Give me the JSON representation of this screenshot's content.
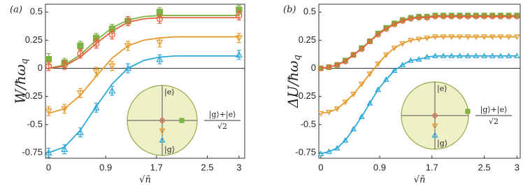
{
  "chart_data": [
    {
      "type": "scatter",
      "panel": "(a)",
      "ylabel": "W/ħω",
      "ylabel_sub": "q",
      "xlabel": "√n̄",
      "xlim": [
        -0.05,
        3.09
      ],
      "ylim": [
        -0.8,
        0.57
      ],
      "xticks": [
        0,
        0.9,
        1.7,
        2.5,
        3
      ],
      "yticks": [
        0.5,
        0.25,
        0,
        -0.25,
        -0.5,
        -0.75
      ],
      "x": [
        0,
        0.25,
        0.5,
        0.75,
        1.0,
        1.25,
        1.75,
        3
      ],
      "series": [
        {
          "color": "#7cb342",
          "marker": "square",
          "values": [
            0.08,
            0.05,
            0.2,
            0.27,
            0.35,
            0.42,
            0.5,
            0.52
          ],
          "errors": [
            0.05,
            0.04,
            0.04,
            0.04,
            0.04,
            0.04,
            0.04,
            0.04
          ]
        },
        {
          "color": "#e8603c",
          "marker": "circle",
          "values": [
            0.02,
            0.03,
            0.13,
            0.22,
            0.3,
            0.42,
            0.44,
            0.47
          ],
          "errors": [
            0.04,
            0.04,
            0.04,
            0.04,
            0.04,
            0.04,
            0.04,
            0.04
          ]
        },
        {
          "color": "#e69a2e",
          "marker": "triangle-down",
          "values": [
            -0.38,
            -0.36,
            -0.22,
            -0.03,
            0.02,
            0.2,
            0.23,
            0.27
          ],
          "errors": [
            0.04,
            0.04,
            0.04,
            0.04,
            0.04,
            0.04,
            0.04,
            0.04
          ]
        },
        {
          "color": "#2ea9d9",
          "marker": "triangle-up",
          "values": [
            -0.75,
            -0.72,
            -0.57,
            -0.35,
            -0.2,
            0.0,
            0.08,
            0.12
          ],
          "errors": [
            0.04,
            0.04,
            0.04,
            0.04,
            0.04,
            0.04,
            0.04,
            0.04
          ]
        }
      ],
      "fit_x": [
        0,
        0.25,
        0.5,
        0.75,
        1.0,
        1.25,
        1.5,
        1.75,
        2.0,
        2.25,
        2.5,
        2.75,
        3.0
      ],
      "fits": [
        {
          "color": "#7cb342",
          "values": [
            0.0,
            0.03,
            0.12,
            0.25,
            0.36,
            0.43,
            0.46,
            0.47,
            0.47,
            0.47,
            0.47,
            0.47,
            0.47
          ]
        },
        {
          "color": "#e8603c",
          "values": [
            0.0,
            0.02,
            0.1,
            0.22,
            0.33,
            0.41,
            0.44,
            0.45,
            0.45,
            0.45,
            0.45,
            0.45,
            0.45
          ]
        },
        {
          "color": "#e69a2e",
          "values": [
            -0.4,
            -0.36,
            -0.24,
            -0.07,
            0.09,
            0.2,
            0.25,
            0.27,
            0.28,
            0.28,
            0.28,
            0.28,
            0.28
          ]
        },
        {
          "color": "#2ea9d9",
          "values": [
            -0.75,
            -0.7,
            -0.55,
            -0.34,
            -0.14,
            0.0,
            0.07,
            0.1,
            0.11,
            0.11,
            0.11,
            0.11,
            0.11
          ]
        }
      ],
      "inset": {
        "e": "|e⟩",
        "g": "|g⟩",
        "sum": "|g⟩+|e⟩",
        "den": "√2"
      }
    },
    {
      "type": "line",
      "panel": "(b)",
      "ylabel": "ΔU/ħω",
      "ylabel_sub": "q",
      "xlabel": "√n̄",
      "xlim": [
        -0.03,
        3.05
      ],
      "ylim": [
        -0.8,
        0.57
      ],
      "xticks": [
        0,
        0.9,
        1.7,
        2.5,
        3
      ],
      "yticks": [
        0.5,
        0.25,
        0,
        -0.25,
        -0.5,
        -0.75
      ],
      "x": [
        0,
        0.125,
        0.25,
        0.375,
        0.5,
        0.625,
        0.75,
        0.875,
        1.0,
        1.125,
        1.25,
        1.375,
        1.5,
        1.625,
        1.75,
        1.875,
        2.0,
        2.125,
        2.25,
        2.375,
        2.5,
        2.625,
        2.75,
        2.875,
        3.0
      ],
      "series": [
        {
          "color": "#7cb342",
          "marker": "square",
          "values": [
            0,
            0.01,
            0.03,
            0.07,
            0.12,
            0.18,
            0.24,
            0.31,
            0.36,
            0.4,
            0.43,
            0.45,
            0.46,
            0.46,
            0.47,
            0.47,
            0.47,
            0.47,
            0.47,
            0.47,
            0.47,
            0.47,
            0.47,
            0.47,
            0.47
          ]
        },
        {
          "color": "#e8603c",
          "marker": "circle",
          "values": [
            0,
            0.01,
            0.03,
            0.06,
            0.12,
            0.17,
            0.24,
            0.3,
            0.35,
            0.39,
            0.42,
            0.44,
            0.45,
            0.45,
            0.46,
            0.46,
            0.46,
            0.46,
            0.46,
            0.46,
            0.46,
            0.46,
            0.46,
            0.46,
            0.46
          ]
        },
        {
          "color": "#e69a2e",
          "marker": "triangle-down",
          "values": [
            -0.4,
            -0.39,
            -0.36,
            -0.3,
            -0.23,
            -0.14,
            -0.05,
            0.04,
            0.12,
            0.18,
            0.22,
            0.25,
            0.26,
            0.27,
            0.28,
            0.28,
            0.28,
            0.28,
            0.28,
            0.28,
            0.28,
            0.28,
            0.28,
            0.28,
            0.28
          ]
        },
        {
          "color": "#2ea9d9",
          "marker": "triangle-up",
          "values": [
            -0.76,
            -0.74,
            -0.71,
            -0.64,
            -0.54,
            -0.43,
            -0.31,
            -0.19,
            -0.1,
            -0.02,
            0.03,
            0.07,
            0.08,
            0.1,
            0.11,
            0.11,
            0.11,
            0.11,
            0.11,
            0.11,
            0.11,
            0.11,
            0.11,
            0.11,
            0.11
          ]
        }
      ],
      "inset": {
        "e": "|e⟩",
        "g": "|g⟩",
        "sum": "|g⟩+|e⟩",
        "den": "√2"
      }
    }
  ]
}
